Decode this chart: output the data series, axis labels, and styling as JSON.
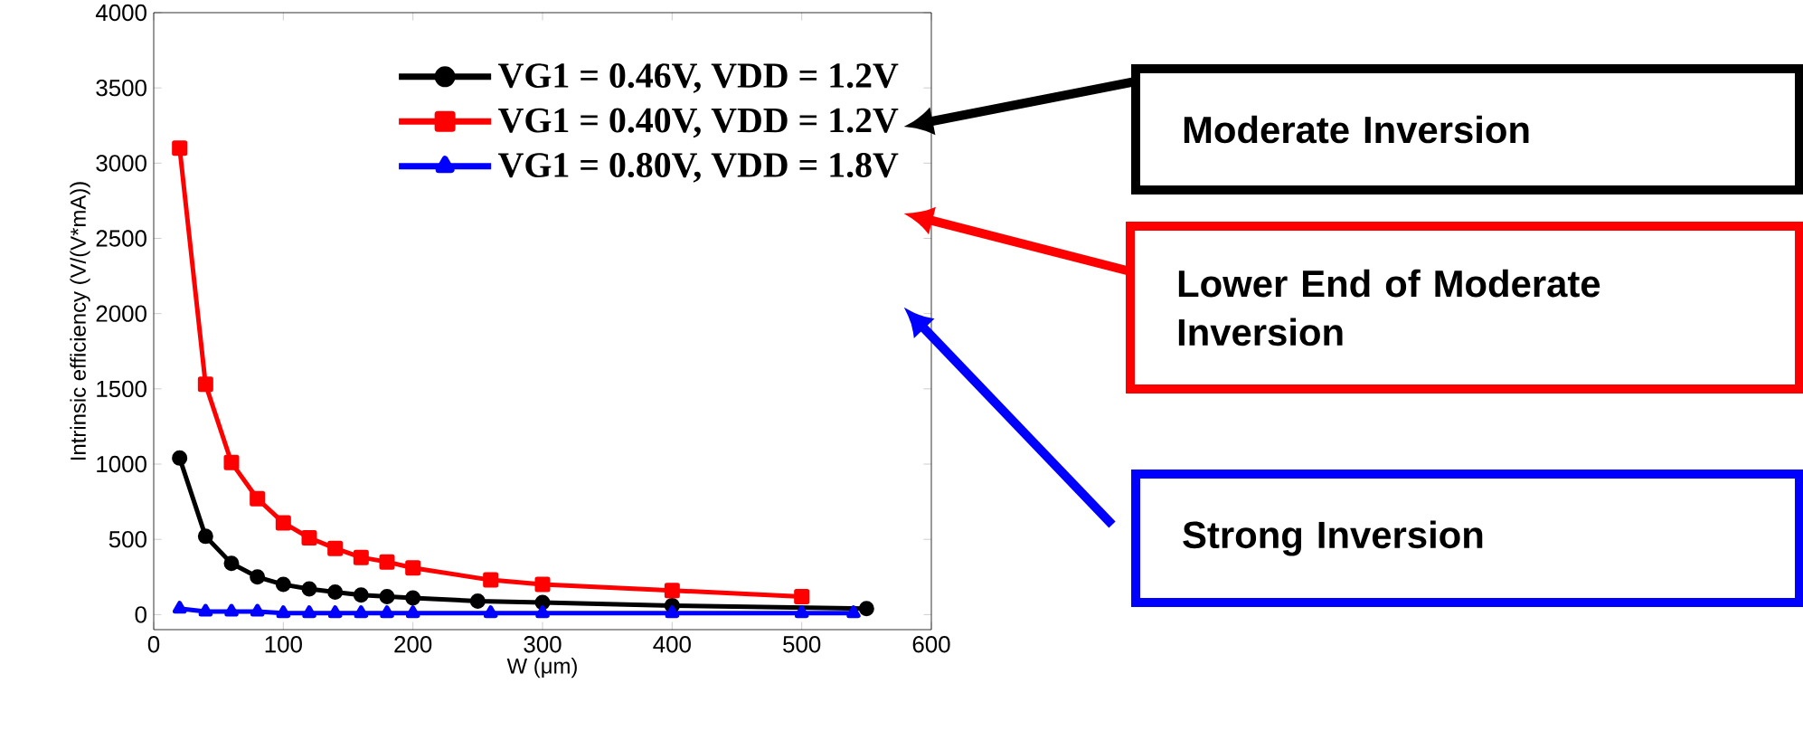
{
  "chart_data": {
    "type": "line",
    "xlabel": "W (μm)",
    "ylabel": "Intrinsic efficiency (V/(V*mA))",
    "xlim": [
      0,
      600
    ],
    "xticks": [
      0,
      100,
      200,
      300,
      400,
      500,
      600
    ],
    "ylim": [
      -100,
      4000
    ],
    "yticks": [
      0,
      500,
      1000,
      1500,
      2000,
      2500,
      3000,
      3500,
      4000
    ],
    "grid": false,
    "legend": "top right",
    "line_style": "solid",
    "series": [
      {
        "name": "VG1 = 0.46V, VDD = 1.2V",
        "color": "#000000",
        "marker": "circle",
        "x": [
          20,
          40,
          60,
          80,
          100,
          120,
          140,
          160,
          180,
          200,
          250,
          300,
          400,
          550
        ],
        "values": [
          1040,
          520,
          340,
          250,
          200,
          170,
          150,
          130,
          120,
          110,
          90,
          80,
          60,
          40
        ]
      },
      {
        "name": "VG1 = 0.40V, VDD = 1.2V",
        "color": "#ff0000",
        "marker": "square",
        "x": [
          20,
          40,
          60,
          80,
          100,
          120,
          140,
          160,
          180,
          200,
          260,
          300,
          400,
          500
        ],
        "values": [
          3100,
          1530,
          1010,
          770,
          610,
          510,
          440,
          380,
          350,
          310,
          230,
          200,
          160,
          120
        ]
      },
      {
        "name": "VG1 = 0.80V, VDD = 1.8V",
        "color": "#0000ff",
        "marker": "triangle",
        "x": [
          20,
          40,
          60,
          80,
          100,
          120,
          140,
          160,
          180,
          200,
          260,
          300,
          400,
          500,
          540
        ],
        "values": [
          40,
          20,
          20,
          20,
          10,
          10,
          10,
          10,
          10,
          10,
          10,
          10,
          10,
          10,
          10
        ]
      }
    ],
    "annotations": [
      "Moderate Inversion",
      "Lower End of Moderate Inversion",
      "Strong Inversion"
    ]
  }
}
